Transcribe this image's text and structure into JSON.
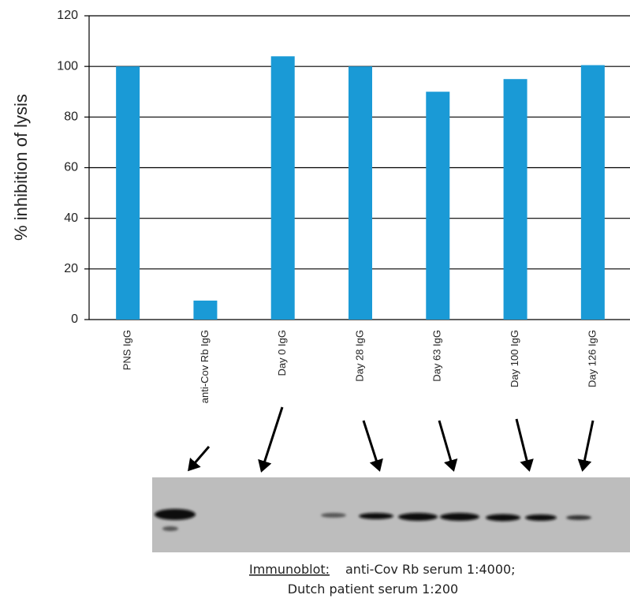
{
  "chart_data": {
    "type": "bar",
    "y_label": "% inhibition of lysis",
    "categories": [
      "PNS IgG",
      "anti-Cov Rb IgG",
      "Day 0 IgG",
      "Day 28 IgG",
      "Day 63 IgG",
      "Day 100 IgG",
      "Day 126 IgG"
    ],
    "values": [
      100,
      7.5,
      104,
      100,
      90,
      95,
      100.5
    ],
    "color": "#1a9ad6",
    "ylim": [
      0,
      120
    ],
    "yticks": [
      0,
      20,
      40,
      60,
      80,
      100,
      120
    ],
    "grid": true
  },
  "caption": {
    "label": "Immunoblot:",
    "line1": "anti-Cov Rb serum 1:4000;",
    "line2": "Dutch patient serum 1:200"
  }
}
